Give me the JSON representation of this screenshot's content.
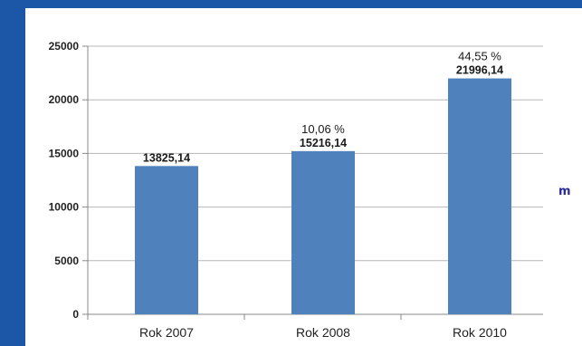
{
  "chart_data": {
    "type": "bar",
    "categories": [
      "Rok 2007",
      "Rok 2008",
      "Rok 2010"
    ],
    "values": [
      13825.14,
      15216.14,
      21996.14
    ],
    "value_labels": [
      "13825,14",
      "15216,14",
      "21996,14"
    ],
    "change_labels": [
      "",
      "10,06 %",
      "44,55 %"
    ],
    "y_ticks": [
      "0",
      "5000",
      "10000",
      "15000",
      "20000",
      "25000"
    ],
    "ylim": [
      0,
      25000
    ],
    "grid": true,
    "bar_color": "#4f81bd"
  },
  "side_text": "m"
}
